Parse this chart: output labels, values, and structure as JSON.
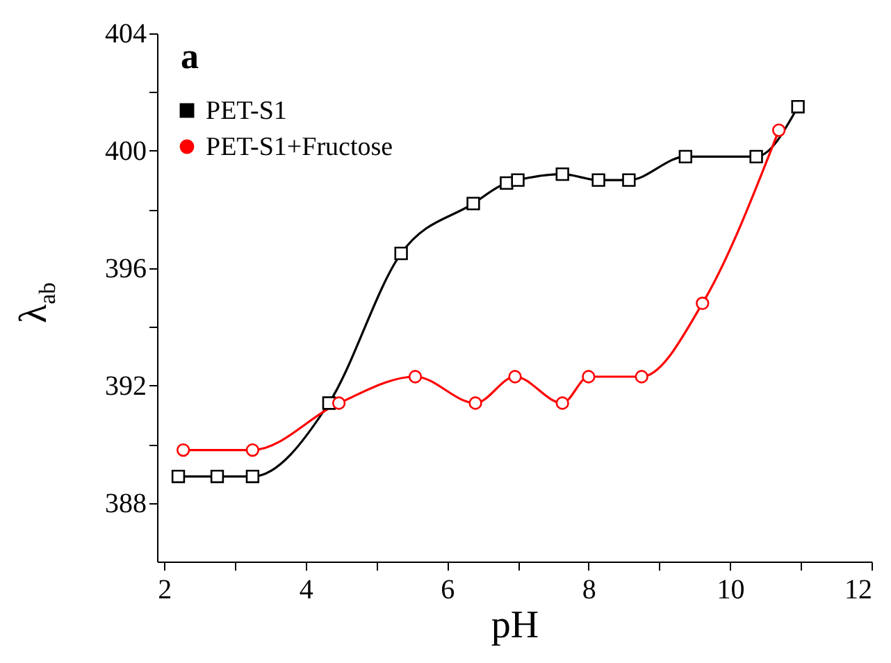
{
  "chart_data": {
    "type": "line",
    "xlabel": "pH",
    "ylabel": "λ$_{ab}$",
    "annotations": [
      "a"
    ],
    "xlim": [
      1.9,
      12
    ],
    "ylim": [
      386,
      404
    ],
    "xticks": [
      2,
      {
        "value": 3,
        "label": null
      },
      4,
      {
        "value": 5,
        "label": null
      },
      6,
      {
        "value": 7,
        "label": null
      },
      8,
      {
        "value": 9,
        "label": null
      },
      10,
      {
        "value": 11,
        "label": null
      },
      12
    ],
    "yticks": [
      388,
      {
        "value": 390,
        "label": null
      },
      392,
      {
        "value": 394,
        "label": null
      },
      396,
      {
        "value": 398,
        "label": null
      },
      400,
      {
        "value": 402,
        "label": null
      },
      404
    ],
    "legend": "top left",
    "line_style": "solid",
    "grid": false,
    "series": [
      {
        "name": "PET-S1",
        "color": "#000000",
        "marker": "square",
        "x": [
          2.2,
          2.75,
          3.25,
          4.33,
          5.35,
          6.37,
          6.84,
          7.0,
          7.63,
          8.14,
          8.57,
          9.37,
          10.37,
          10.96
        ],
        "values": [
          388.9,
          388.9,
          388.9,
          391.4,
          396.5,
          398.2,
          398.9,
          399.0,
          399.2,
          399.0,
          399.0,
          399.8,
          399.8,
          401.5
        ]
      },
      {
        "name": "PET-S1+Fructose",
        "color": "#ff0000",
        "marker": "circle",
        "x": [
          2.27,
          3.25,
          4.47,
          5.55,
          6.4,
          6.96,
          7.63,
          8.0,
          8.75,
          9.61,
          10.69
        ],
        "values": [
          389.8,
          389.8,
          391.4,
          392.3,
          391.4,
          392.3,
          391.4,
          392.3,
          392.3,
          394.8,
          400.7
        ]
      }
    ]
  }
}
